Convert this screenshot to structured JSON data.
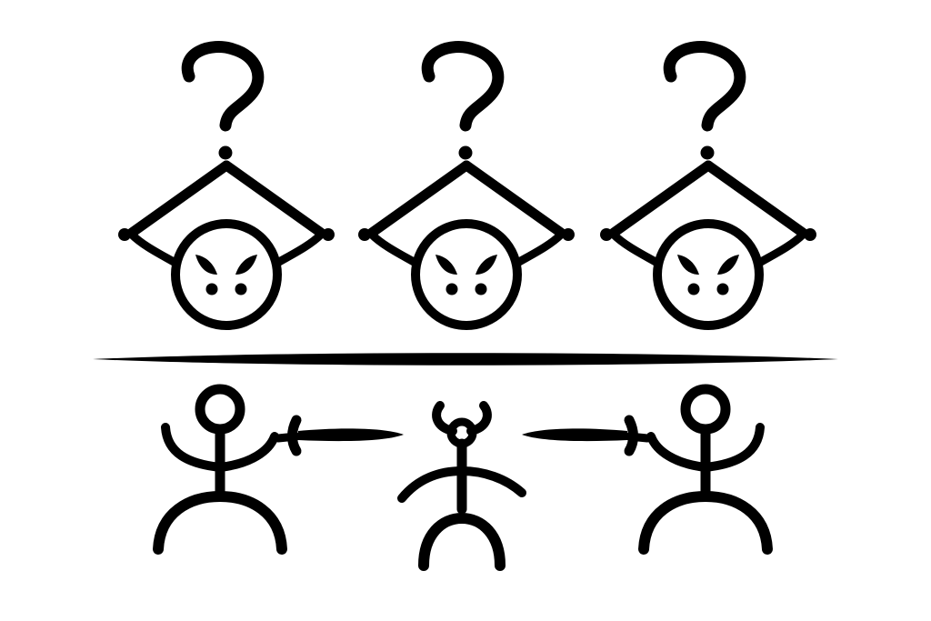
{
  "illustration": {
    "colors": {
      "ink": "#000000",
      "background": "#ffffff"
    },
    "upper_row": {
      "count": 3,
      "figures": [
        {
          "symbol_icon": "question-mark-icon",
          "figure": "hat-face"
        },
        {
          "symbol_icon": "question-mark-icon",
          "figure": "hat-face"
        },
        {
          "symbol_icon": "question-mark-icon",
          "figure": "hat-face"
        }
      ]
    },
    "divider": "horizontal-bar",
    "lower_row": {
      "count": 3,
      "figures": [
        {
          "figure": "stick-figure-with-sword",
          "sword_direction": "right"
        },
        {
          "figure": "horned-stick-figure"
        },
        {
          "figure": "stick-figure-with-sword",
          "sword_direction": "left"
        }
      ]
    }
  }
}
